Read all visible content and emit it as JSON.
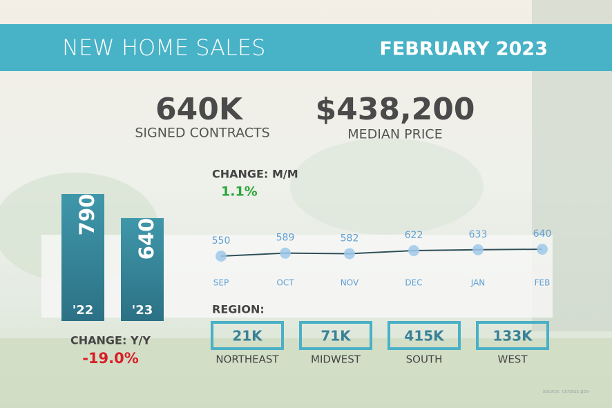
{
  "header": {
    "title": "NEW HOME SALES",
    "date": "FEBRUARY 2023"
  },
  "stats": [
    {
      "value": "640K",
      "label": "SIGNED CONTRACTS"
    },
    {
      "value": "$438,200",
      "label": "MEDIAN PRICE"
    }
  ],
  "mm_change": {
    "label": "CHANGE: M/M",
    "value": "1.1%"
  },
  "yy_change": {
    "label": "CHANGE: Y/Y",
    "value": "-19.0%"
  },
  "chart_data": [
    {
      "type": "bar",
      "categories": [
        "'22",
        "'23"
      ],
      "values": [
        790,
        640
      ],
      "color": "#3a8b9e"
    },
    {
      "type": "line",
      "categories": [
        "SEP",
        "OCT",
        "NOV",
        "DEC",
        "JAN",
        "FEB"
      ],
      "values": [
        550,
        589,
        582,
        622,
        633,
        640
      ],
      "color": "#2f4f5a",
      "marker_color": "#9fc8ea"
    }
  ],
  "region": {
    "title": "REGION:",
    "items": [
      {
        "value": "21K",
        "name": "NORTHEAST"
      },
      {
        "value": "71K",
        "name": "MIDWEST"
      },
      {
        "value": "415K",
        "name": "SOUTH"
      },
      {
        "value": "133K",
        "name": "WEST"
      }
    ]
  },
  "source": "source: census.gov"
}
